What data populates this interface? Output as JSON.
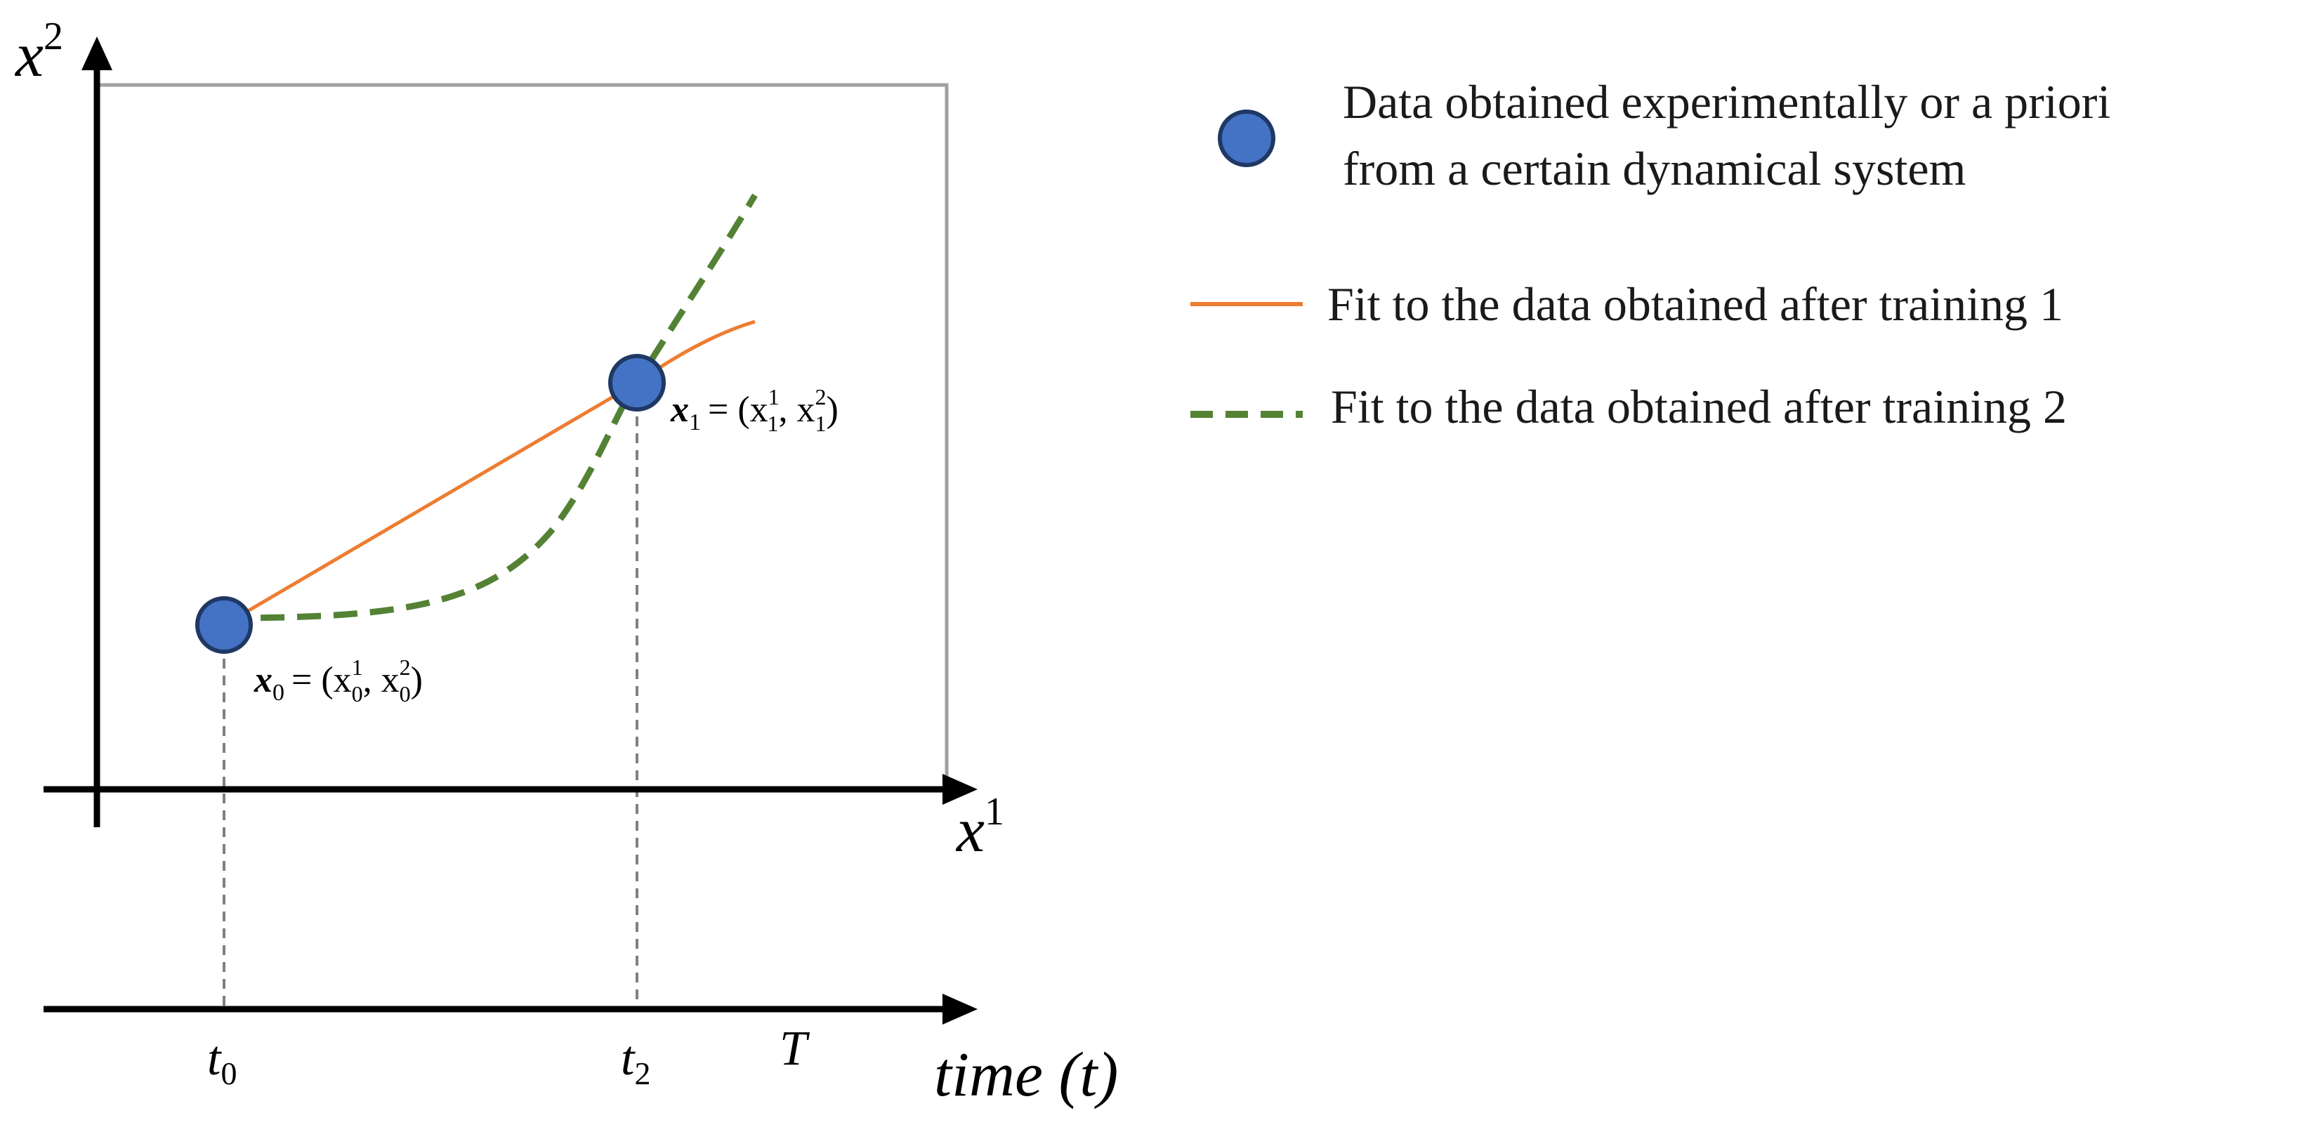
{
  "axes": {
    "y_label": "x",
    "y_label_sup": "2",
    "x_label": "x",
    "x_label_sup": "1",
    "time_label": "time (t)"
  },
  "time_ticks": {
    "t0_base": "t",
    "t0_sub": "0",
    "t2_base": "t",
    "t2_sub": "2",
    "T": "T"
  },
  "points": {
    "x0": {
      "name": "x",
      "sub": "0",
      "rhs": "= (x",
      "c1_sub": "0",
      "c1_sup": "1",
      "sep": ", x",
      "c2_sub": "0",
      "c2_sup": "2",
      "close": ")"
    },
    "x1": {
      "name": "x",
      "sub": "1",
      "rhs": "= (x",
      "c1_sub": "1",
      "c1_sup": "1",
      "sep": ", x",
      "c2_sub": "1",
      "c2_sup": "2",
      "close": ")"
    }
  },
  "legend": {
    "data_line1": "Data obtained experimentally or a priori",
    "data_line2": "from a certain dynamical system",
    "fit1": "Fit to the data obtained after training 1",
    "fit2": "Fit to the data obtained after training 2"
  },
  "colors": {
    "point_fill": "#4472c4",
    "point_stroke": "#1f3864",
    "fit1": "#ed7d31",
    "fit2": "#548235",
    "axis": "#000000",
    "frame": "#a0a0a0",
    "guide": "#808080"
  }
}
